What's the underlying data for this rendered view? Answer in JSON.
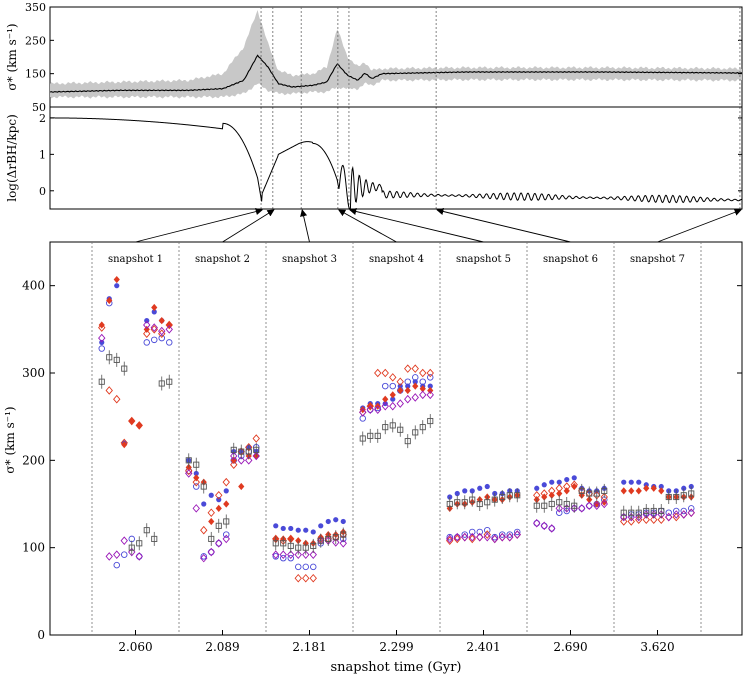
{
  "chart_data": [
    {
      "type": "line",
      "id": "top-panel",
      "ylabel": "σ* (km s⁻¹)",
      "xlim": [
        0,
        100
      ],
      "ylim": [
        50,
        350
      ],
      "yticks": [
        "350",
        "250",
        "150",
        "50"
      ],
      "ytick_values": [
        350,
        250,
        150,
        50
      ],
      "series": [
        {
          "name": "median sigma",
          "color": "#000000"
        },
        {
          "name": "spread band",
          "color": "#c8c8c8"
        }
      ],
      "features": [
        {
          "x": 0,
          "y": 95,
          "lo": 80,
          "hi": 120
        },
        {
          "x": 10,
          "y": 100,
          "lo": 80,
          "hi": 125
        },
        {
          "x": 20,
          "y": 100,
          "lo": 80,
          "hi": 130
        },
        {
          "x": 25,
          "y": 105,
          "lo": 80,
          "hi": 150
        },
        {
          "x": 28,
          "y": 130,
          "lo": 90,
          "hi": 230
        },
        {
          "x": 30,
          "y": 205,
          "lo": 120,
          "hi": 340
        },
        {
          "x": 31.5,
          "y": 170,
          "lo": 100,
          "hi": 240
        },
        {
          "x": 33,
          "y": 120,
          "lo": 90,
          "hi": 160
        },
        {
          "x": 35,
          "y": 110,
          "lo": 90,
          "hi": 145
        },
        {
          "x": 38,
          "y": 115,
          "lo": 95,
          "hi": 150
        },
        {
          "x": 40,
          "y": 125,
          "lo": 95,
          "hi": 170
        },
        {
          "x": 41.5,
          "y": 180,
          "lo": 110,
          "hi": 285
        },
        {
          "x": 43,
          "y": 145,
          "lo": 105,
          "hi": 200
        },
        {
          "x": 44.5,
          "y": 130,
          "lo": 105,
          "hi": 170
        },
        {
          "x": 45.5,
          "y": 152,
          "lo": 120,
          "hi": 185
        },
        {
          "x": 46.5,
          "y": 135,
          "lo": 115,
          "hi": 160
        },
        {
          "x": 48,
          "y": 150,
          "lo": 130,
          "hi": 165
        },
        {
          "x": 60,
          "y": 155,
          "lo": 132,
          "hi": 168
        },
        {
          "x": 80,
          "y": 155,
          "lo": 132,
          "hi": 168
        },
        {
          "x": 100,
          "y": 152,
          "lo": 130,
          "hi": 165
        }
      ]
    },
    {
      "type": "line",
      "id": "middle-panel",
      "ylabel": "log(ΔrBH/kpc)",
      "xlim": [
        0,
        100
      ],
      "ylim": [
        -0.5,
        2.3
      ],
      "yticks": [
        "2",
        "1",
        "0"
      ],
      "ytick_values": [
        2,
        1,
        0
      ],
      "series": [
        {
          "name": "log separation",
          "color": "#000000"
        }
      ]
    },
    {
      "type": "scatter",
      "id": "bottom-panel",
      "xlabel": "snapshot time (Gyr)",
      "ylabel": "σ* (km s⁻¹)",
      "ylim": [
        0,
        450
      ],
      "yticks": [
        "0",
        "100",
        "200",
        "300",
        "400"
      ],
      "ytick_values": [
        0,
        100,
        200,
        300,
        400
      ],
      "categories": [
        "2.060",
        "2.089",
        "2.181",
        "2.299",
        "2.401",
        "2.690",
        "3.620"
      ],
      "snapshot_labels": [
        "snapshot 1",
        "snapshot 2",
        "snapshot 3",
        "snapshot 4",
        "snapshot 5",
        "snapshot 6",
        "snapshot 7"
      ],
      "series": [
        {
          "name": "filled blue circle",
          "color": "#4a4ad8",
          "marker": "circle-filled",
          "values": [
            [
              335,
              385,
              400,
              220,
              245,
              240,
              360,
              370,
              360,
              355
            ],
            [
              200,
              185,
              150,
              160,
              155,
              165,
              210,
              210,
              215,
              210
            ],
            [
              125,
              122,
              122,
              120,
              120,
              118,
              125,
              130,
              132,
              130
            ],
            [
              260,
              265,
              265,
              265,
              270,
              285,
              285,
              290,
              285,
              285
            ],
            [
              158,
              162,
              165,
              165,
              168,
              170,
              162,
              162,
              165,
              165
            ],
            [
              168,
              172,
              175,
              175,
              178,
              180,
              168,
              165,
              165,
              168
            ],
            [
              175,
              175,
              175,
              172,
              170,
              170,
              165,
              165,
              168,
              170
            ]
          ]
        },
        {
          "name": "open blue circle",
          "color": "#4a4ad8",
          "marker": "circle-open",
          "values": [
            [
              328,
              380,
              80,
              92,
              110,
              90,
              335,
              338,
              340,
              335
            ],
            [
              188,
              170,
              90,
              95,
              105,
              115,
              200,
              205,
              210,
              215
            ],
            [
              90,
              88,
              88,
              78,
              78,
              78,
              105,
              110,
              112,
              110
            ],
            [
              248,
              258,
              260,
              285,
              285,
              280,
              290,
              295,
              290,
              295
            ],
            [
              112,
              112,
              115,
              118,
              118,
              120,
              112,
              115,
              115,
              118
            ],
            [
              128,
              125,
              122,
              140,
              142,
              145,
              145,
              148,
              150,
              155
            ],
            [
              135,
              138,
              138,
              140,
              140,
              142,
              140,
              142,
              142,
              145
            ]
          ]
        },
        {
          "name": "filled red diamond",
          "color": "#e03a20",
          "marker": "diamond-filled",
          "values": [
            [
              355,
              383,
              407,
              218,
              245,
              240,
              350,
              375,
              360,
              355
            ],
            [
              192,
              180,
              175,
              130,
              145,
              150,
              200,
              170,
              205,
              205
            ],
            [
              110,
              110,
              110,
              108,
              105,
              105,
              112,
              115,
              115,
              118
            ],
            [
              258,
              262,
              262,
              270,
              275,
              280,
              280,
              285,
              282,
              280
            ],
            [
              145,
              150,
              150,
              152,
              155,
              158,
              155,
              155,
              158,
              160
            ],
            [
              155,
              158,
              160,
              162,
              165,
              170,
              160,
              155,
              150,
              152
            ],
            [
              165,
              165,
              165,
              168,
              168,
              165,
              158,
              158,
              158,
              158
            ]
          ]
        },
        {
          "name": "open red diamond",
          "color": "#e03a20",
          "marker": "diamond-open",
          "values": [
            [
              352,
              280,
              270,
              220,
              245,
              240,
              345,
              350,
              345,
              355
            ],
            [
              188,
              175,
              120,
              140,
              160,
              175,
              195,
              210,
              215,
              225
            ],
            [
              110,
              108,
              110,
              65,
              65,
              65,
              110,
              110,
              112,
              115
            ],
            [
              255,
              262,
              300,
              300,
              295,
              290,
              305,
              305,
              300,
              300
            ],
            [
              108,
              110,
              112,
              110,
              112,
              115,
              110,
              112,
              112,
              115
            ],
            [
              160,
              162,
              165,
              168,
              170,
              172,
              165,
              162,
              160,
              158
            ],
            [
              130,
              130,
              132,
              132,
              132,
              132,
              135,
              135,
              138,
              140
            ]
          ]
        },
        {
          "name": "purple diamond",
          "color": "#9a18b8",
          "marker": "diamond-open",
          "values": [
            [
              340,
              90,
              92,
              108,
              95,
              90,
              355,
              352,
              348,
              350
            ],
            [
              185,
              145,
              88,
              95,
              105,
              110,
              205,
              200,
              200,
              205
            ],
            [
              92,
              92,
              92,
              92,
              92,
              92,
              108,
              108,
              106,
              105
            ],
            [
              255,
              258,
              258,
              262,
              262,
              265,
              270,
              272,
              275,
              275
            ],
            [
              110,
              112,
              112,
              112,
              112,
              112,
              110,
              112,
              112,
              115
            ],
            [
              128,
              125,
              122,
              145,
              145,
              145,
              145,
              148,
              148,
              150
            ],
            [
              135,
              135,
              135,
              138,
              138,
              138,
              135,
              138,
              138,
              140
            ]
          ]
        },
        {
          "name": "gray square",
          "color": "#555555",
          "marker": "square-open",
          "values": [
            [
              290,
              318,
              315,
              305,
              100,
              105,
              120,
              110,
              288,
              290
            ],
            [
              200,
              195,
              170,
              110,
              125,
              130,
              212,
              210,
              210,
              212
            ],
            [
              105,
              105,
              102,
              100,
              100,
              102,
              108,
              110,
              112,
              115
            ],
            [
              225,
              228,
              228,
              238,
              240,
              235,
              222,
              232,
              238,
              245
            ],
            [
              150,
              152,
              152,
              155,
              150,
              152,
              155,
              158,
              160,
              160
            ],
            [
              148,
              148,
              150,
              152,
              150,
              148,
              165,
              162,
              162,
              165
            ],
            [
              140,
              140,
              140,
              142,
              142,
              142,
              158,
              158,
              160,
              162
            ]
          ]
        }
      ]
    }
  ]
}
